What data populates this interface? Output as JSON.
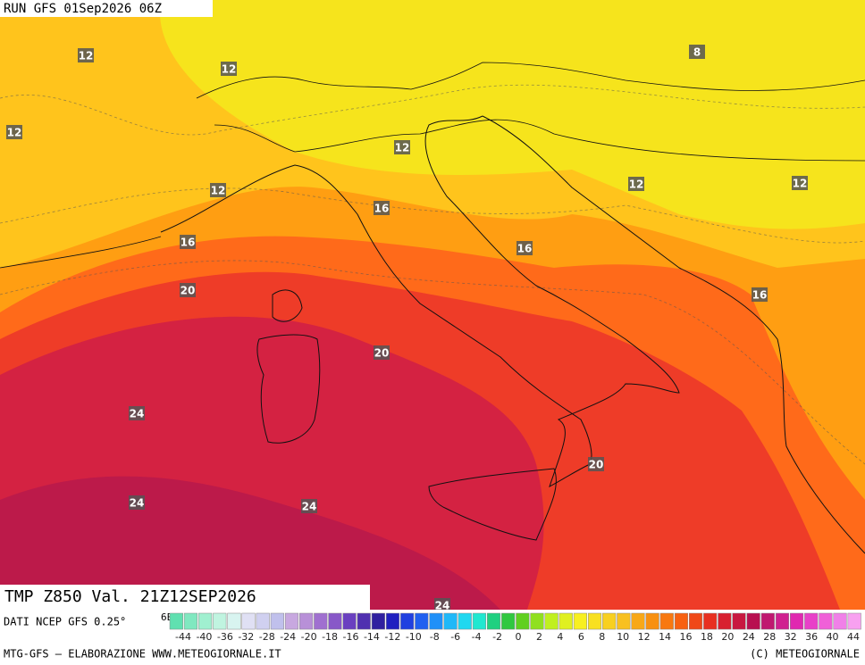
{
  "map": {
    "run_label": "RUN GFS 01Sep2026 06Z",
    "contour_labels": [
      "12",
      "12",
      "12",
      "12",
      "12",
      "12",
      "12",
      "8",
      "16",
      "16",
      "16",
      "16",
      "20",
      "20",
      "20",
      "24",
      "24",
      "24",
      "24"
    ],
    "title": "TMP Z850 Val. 21Z12SEP2026",
    "source": "DATI NCEP GFS 0.25°",
    "axis_label": "6E",
    "legend_labels": [
      -44,
      -40,
      -36,
      -32,
      -28,
      -24,
      -20,
      -18,
      -16,
      -14,
      -12,
      -10,
      -8,
      -6,
      -4,
      -2,
      0,
      2,
      4,
      6,
      8,
      10,
      12,
      14,
      16,
      18,
      20,
      24,
      28,
      32,
      36,
      40,
      44
    ],
    "footer_left": "MTG-GFS — ELABORAZIONE WWW.METEOGIORNALE.IT",
    "footer_right": "(C) METEOGIORNALE"
  }
}
